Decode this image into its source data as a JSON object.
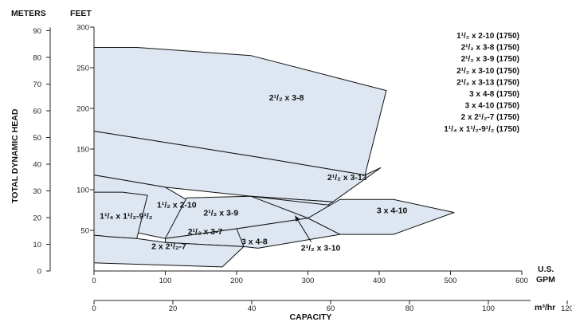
{
  "chart_data": {
    "type": "area",
    "axes": {
      "y_left": {
        "label": "METERS",
        "ticks": [
          0,
          10,
          20,
          30,
          40,
          50,
          60,
          70,
          80,
          90
        ]
      },
      "y_right": {
        "label": "FEET",
        "ticks": [
          50,
          100,
          150,
          200,
          250,
          300
        ]
      },
      "y_title": "TOTAL DYNAMIC HEAD",
      "x_gpm": {
        "label": "U.S. GPM",
        "ticks": [
          0,
          100,
          200,
          300,
          400,
          500,
          600
        ],
        "range": [
          0,
          600
        ]
      },
      "x_m3hr": {
        "label": "m³/hr",
        "ticks": [
          0,
          20,
          40,
          60,
          80,
          100,
          120
        ]
      },
      "x_title": "CAPACITY",
      "ylim_feet": [
        0,
        300
      ]
    },
    "legend": [
      "1¹/₂ x 2-10 (1750)",
      "2¹/₂ x 3-8 (1750)",
      "2¹/₂ x 3-9 (1750)",
      "2¹/₂ x 3-10 (1750)",
      "2¹/₂ x 3-13 (1750)",
      "3 x 4-8 (1750)",
      "3 x 4-10 (1750)",
      "2 x 2¹/₂-7 (1750)",
      "1¹/₄ x 1¹/₂-9¹/₂ (1750)"
    ],
    "fill_color": "#dde6f1",
    "edge_color": "#111111",
    "series": [
      {
        "name": "2¹/₂ x 3-8",
        "label_at": [
          270,
          210
        ],
        "points": [
          [
            0,
            275
          ],
          [
            60,
            275
          ],
          [
            220,
            265
          ],
          [
            410,
            222
          ],
          [
            380,
            118
          ],
          [
            230,
            140
          ],
          [
            0,
            172
          ]
        ]
      },
      {
        "name": "2¹/₂ x 3-13",
        "label_at": [
          355,
          112
        ],
        "points": [
          [
            0,
            172
          ],
          [
            230,
            140
          ],
          [
            380,
            118
          ],
          [
            402,
            127
          ],
          [
            335,
            85
          ],
          [
            220,
            92
          ],
          [
            100,
            103
          ],
          [
            0,
            118
          ]
        ]
      },
      {
        "name": "1¹/₂ x 2-10",
        "label_at": [
          116,
          78
        ],
        "points": [
          [
            0,
            118
          ],
          [
            100,
            103
          ],
          [
            135,
            85
          ],
          [
            100,
            40
          ],
          [
            0,
            58
          ]
        ]
      },
      {
        "name": "1¹/₄ x 1¹/₂-9¹/₂",
        "label_at": [
          45,
          64
        ],
        "points": [
          [
            0,
            97
          ],
          [
            40,
            97
          ],
          [
            75,
            93
          ],
          [
            60,
            40
          ],
          [
            25,
            42
          ],
          [
            0,
            44
          ]
        ]
      },
      {
        "name": "2¹/₂ x 3-9",
        "label_at": [
          178,
          68
        ],
        "points": [
          [
            130,
            90
          ],
          [
            220,
            92
          ],
          [
            335,
            85
          ],
          [
            300,
            65
          ],
          [
            200,
            52
          ],
          [
            100,
            40
          ]
        ]
      },
      {
        "name": "2¹/₂ x 3-7",
        "label_at": [
          156,
          45
        ],
        "points": [
          [
            100,
            40
          ],
          [
            200,
            52
          ],
          [
            235,
            45
          ],
          [
            210,
            30
          ],
          [
            100,
            35
          ]
        ]
      },
      {
        "name": "2¹/₂ x 3-10",
        "label_at": [
          318,
          25
        ],
        "points": [
          [
            220,
            92
          ],
          [
            320,
            82
          ],
          [
            360,
            78
          ],
          [
            300,
            65
          ]
        ]
      },
      {
        "name": "3 x 4-8",
        "label_at": [
          225,
          33
        ],
        "points": [
          [
            200,
            52
          ],
          [
            300,
            65
          ],
          [
            345,
            45
          ],
          [
            230,
            28
          ],
          [
            210,
            30
          ]
        ]
      },
      {
        "name": "3 x 4-10",
        "label_at": [
          418,
          71
        ],
        "points": [
          [
            345,
            88
          ],
          [
            420,
            88
          ],
          [
            505,
            72
          ],
          [
            420,
            45
          ],
          [
            345,
            45
          ],
          [
            300,
            65
          ]
        ]
      },
      {
        "name": "2 x 2¹/₂-7",
        "label_at": [
          105,
          27
        ],
        "points": [
          [
            0,
            44
          ],
          [
            25,
            42
          ],
          [
            60,
            40
          ],
          [
            100,
            35
          ],
          [
            210,
            30
          ],
          [
            180,
            5
          ],
          [
            0,
            10
          ]
        ]
      }
    ],
    "annotation": {
      "text": "2¹/₂ x 3-10",
      "label_at": [
        318,
        25
      ],
      "arrow_to": [
        282,
        68
      ]
    },
    "legend_placement": "top-right",
    "grid": false
  }
}
